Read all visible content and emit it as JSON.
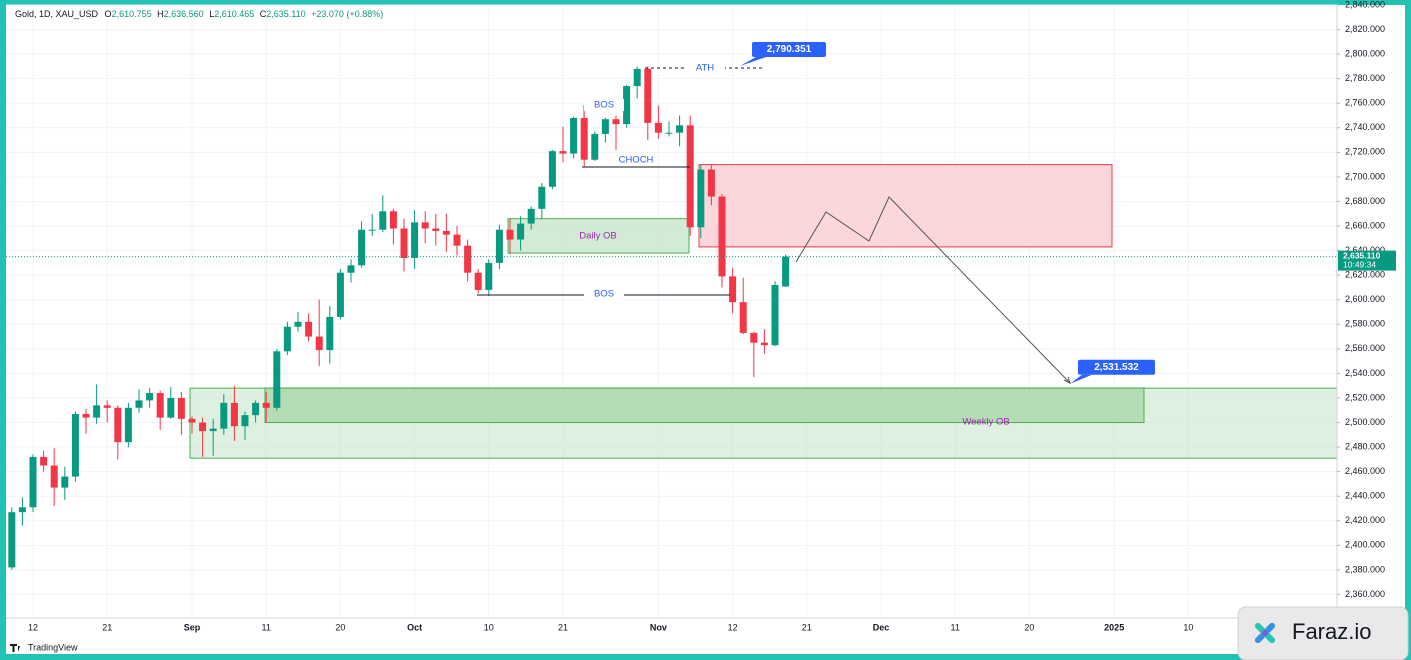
{
  "chart_data": {
    "type": "candlestick",
    "legend_header": {
      "symbol": "Gold, 1D, XAU_USD",
      "ohlc": [
        {
          "key": "O",
          "value": "2,610.755"
        },
        {
          "key": "H",
          "value": "2,636.560"
        },
        {
          "key": "L",
          "value": "2,610.465"
        },
        {
          "key": "C",
          "value": "2,635.110"
        }
      ],
      "change": "+23.070 (+0.88%)"
    },
    "categories": [
      null,
      null,
      "12",
      null,
      null,
      null,
      null,
      null,
      null,
      "21",
      null,
      null,
      null,
      null,
      null,
      null,
      null,
      "Sep",
      null,
      null,
      null,
      null,
      null,
      null,
      "11",
      null,
      null,
      null,
      null,
      null,
      null,
      "20",
      null,
      null,
      null,
      null,
      null,
      null,
      "Oct",
      null,
      null,
      null,
      null,
      null,
      null,
      "10",
      null,
      null,
      null,
      null,
      null,
      null,
      "21",
      null,
      null,
      null,
      null,
      null,
      null,
      null,
      null,
      "Nov",
      null,
      null,
      null,
      null,
      null,
      null,
      "12",
      null,
      null,
      null,
      null,
      null,
      null,
      "21",
      null,
      null,
      null,
      null,
      null,
      null,
      "Dec",
      null,
      null,
      null,
      null,
      null,
      null,
      "11",
      null,
      null,
      null,
      null,
      null,
      null,
      "20",
      null,
      null,
      null,
      null,
      null,
      null,
      null,
      "2025",
      null,
      null,
      null,
      null,
      null,
      null,
      "10",
      null,
      null,
      null,
      null,
      null,
      null,
      null,
      null,
      null,
      null,
      null,
      null,
      null,
      null
    ],
    "open": [
      2382,
      2427,
      2431,
      2472,
      2465,
      2447,
      2456,
      2507,
      2504,
      2514,
      2512,
      2484,
      2512,
      2518,
      2524,
      2504,
      2520,
      2503,
      2500,
      2493,
      2495,
      2516,
      2497,
      2506,
      2516,
      2512,
      2558,
      2578,
      2582,
      2570,
      2559,
      2586,
      2622,
      2628,
      2657,
      2657,
      2672,
      2658,
      2634,
      2663,
      2658,
      2656,
      2653,
      2644,
      2622,
      2608,
      2630,
      2657,
      2649,
      2662,
      2674,
      2692,
      2721,
      2719,
      2748,
      2714,
      2735,
      2747,
      2743,
      2774,
      2788,
      2744,
      2736,
      2736,
      2742,
      2659,
      2706,
      2684,
      2619,
      2598,
      2573,
      2565,
      2563,
      2610.755,
      null,
      null,
      null,
      null,
      null,
      null,
      null,
      null,
      null,
      null,
      null,
      null,
      null,
      null,
      null,
      null,
      null,
      null,
      null,
      null,
      null,
      null,
      null,
      null,
      null,
      null,
      null,
      null,
      null,
      null,
      null,
      null,
      null,
      null,
      null,
      null,
      null,
      null,
      null,
      null,
      null,
      null,
      null,
      null,
      null,
      null,
      null,
      null,
      null,
      null,
      null,
      null
    ],
    "high": [
      2431,
      2439,
      2474,
      2477,
      2479,
      2464,
      2509,
      2511,
      2531,
      2518,
      2514,
      2516,
      2527,
      2528,
      2526,
      2529,
      2525,
      2505,
      2504,
      2503,
      2523,
      2530,
      2509,
      2518,
      2525,
      2560,
      2582,
      2590,
      2589,
      2600,
      2595,
      2625,
      2633,
      2664,
      2670,
      2685,
      2674,
      2666,
      2673,
      2672,
      2670,
      2670,
      2660,
      2649,
      2625,
      2633,
      2661,
      2666,
      2668,
      2676,
      2695,
      2722,
      2741,
      2749,
      2758,
      2737,
      2748,
      2750,
      2775,
      2790,
      2790,
      2758,
      2745,
      2750,
      2750,
      2710,
      2710,
      2686,
      2626,
      2618,
      2574,
      2576,
      2615,
      2636.56,
      null,
      null,
      null,
      null,
      null,
      null,
      null,
      null,
      null,
      null,
      null,
      null,
      null,
      null,
      null,
      null,
      null,
      null,
      null,
      null,
      null,
      null,
      null,
      null,
      null,
      null,
      null,
      null,
      null,
      null,
      null,
      null,
      null,
      null,
      null,
      null,
      null,
      null,
      null,
      null,
      null,
      null,
      null,
      null,
      null,
      null,
      null,
      null,
      null,
      null,
      null,
      null
    ],
    "low": [
      2380,
      2416,
      2427,
      2460,
      2432,
      2437,
      2452,
      2491,
      2499,
      2500,
      2470,
      2480,
      2508,
      2512,
      2494,
      2503,
      2490,
      2491,
      2472,
      2473,
      2490,
      2485,
      2486,
      2500,
      2500,
      2510,
      2555,
      2574,
      2566,
      2546,
      2548,
      2584,
      2614,
      2626,
      2652,
      2655,
      2645,
      2623,
      2625,
      2646,
      2644,
      2639,
      2636,
      2615,
      2605,
      2603,
      2625,
      2637,
      2640,
      2657,
      2666,
      2690,
      2712,
      2715,
      2708,
      2713,
      2728,
      2722,
      2740,
      2764,
      2730,
      2731,
      2733,
      2725,
      2652,
      2650,
      2677,
      2610,
      2589,
      2572,
      2537,
      2556,
      2562,
      2610.465,
      null,
      null,
      null,
      null,
      null,
      null,
      null,
      null,
      null,
      null,
      null,
      null,
      null,
      null,
      null,
      null,
      null,
      null,
      null,
      null,
      null,
      null,
      null,
      null,
      null,
      null,
      null,
      null,
      null,
      null,
      null,
      null,
      null,
      null,
      null,
      null,
      null,
      null,
      null,
      null,
      null,
      null,
      null,
      null,
      null,
      null,
      null,
      null,
      null,
      null,
      null,
      null
    ],
    "close": [
      2427,
      2431,
      2472,
      2465,
      2447,
      2456,
      2507,
      2504,
      2514,
      2512,
      2484,
      2512,
      2518,
      2524,
      2504,
      2520,
      2503,
      2500,
      2493,
      2495,
      2516,
      2497,
      2506,
      2516,
      2512,
      2558,
      2578,
      2582,
      2570,
      2559,
      2586,
      2622,
      2628,
      2657,
      2657,
      2672,
      2658,
      2634,
      2663,
      2658,
      2656,
      2653,
      2644,
      2622,
      2608,
      2630,
      2657,
      2649,
      2662,
      2674,
      2692,
      2721,
      2719,
      2748,
      2714,
      2735,
      2747,
      2743,
      2774,
      2788,
      2744,
      2736,
      2736,
      2742,
      2659,
      2706,
      2684,
      2619,
      2598,
      2573,
      2565,
      2563,
      2612,
      2635.11,
      null,
      null,
      null,
      null,
      null,
      null,
      null,
      null,
      null,
      null,
      null,
      null,
      null,
      null,
      null,
      null,
      null,
      null,
      null,
      null,
      null,
      null,
      null,
      null,
      null,
      null,
      null,
      null,
      null,
      null,
      null,
      null,
      null,
      null,
      null,
      null,
      null,
      null,
      null,
      null,
      null,
      null,
      null,
      null,
      null,
      null,
      null,
      null,
      null,
      null,
      null,
      null
    ],
    "up_color": "#089981",
    "down_color": "#f23645",
    "ylim": [
      2340,
      2840
    ],
    "yticks": [
      {
        "value": 2360,
        "label": "2,360.000"
      },
      {
        "value": 2380,
        "label": "2,380.000"
      },
      {
        "value": 2400,
        "label": "2,400.000"
      },
      {
        "value": 2420,
        "label": "2,420.000"
      },
      {
        "value": 2440,
        "label": "2,440.000"
      },
      {
        "value": 2460,
        "label": "2,460.000"
      },
      {
        "value": 2480,
        "label": "2,480.000"
      },
      {
        "value": 2500,
        "label": "2,500.000"
      },
      {
        "value": 2520,
        "label": "2,520.000"
      },
      {
        "value": 2540,
        "label": "2,540.000"
      },
      {
        "value": 2560,
        "label": "2,560.000"
      },
      {
        "value": 2580,
        "label": "2,580.000"
      },
      {
        "value": 2600,
        "label": "2,600.000"
      },
      {
        "value": 2620,
        "label": "2,620.000"
      },
      {
        "value": 2640,
        "label": "2,640.000"
      },
      {
        "value": 2660,
        "label": "2,660.000"
      },
      {
        "value": 2680,
        "label": "2,680.000"
      },
      {
        "value": 2700,
        "label": "2,700.000"
      },
      {
        "value": 2720,
        "label": "2,720.000"
      },
      {
        "value": 2740,
        "label": "2,740.000"
      },
      {
        "value": 2760,
        "label": "2,760.000"
      },
      {
        "value": 2780,
        "label": "2,780.000"
      },
      {
        "value": 2800,
        "label": "2,800.000"
      },
      {
        "value": 2820,
        "label": "2,820.000"
      },
      {
        "value": 2840,
        "label": "2,840.000"
      }
    ],
    "grid": true,
    "last_price": {
      "value": 2635.11,
      "label": "2,635.110"
    },
    "countdown": "10:49:34",
    "zones": [
      {
        "top": 2528,
        "bottom": 2471,
        "color": "#c8e6c9"
      },
      {
        "top": 2528,
        "bottom": 2500,
        "color": "#a5d6a7"
      },
      {
        "top": 2666,
        "bottom": 2638,
        "color": "#c8e6c9"
      },
      {
        "top": 2710,
        "bottom": 2643,
        "color": "#fbd3d8"
      }
    ],
    "callouts": [
      {
        "value": 2790.351,
        "label": "2,790.351"
      },
      {
        "value": 2531.532,
        "label": "2,531.532"
      }
    ],
    "annotations": [
      {
        "text": "ATH"
      },
      {
        "text": "BOS"
      },
      {
        "text": "CHOCH"
      },
      {
        "text": "BOS"
      },
      {
        "text": "Daily OB"
      },
      {
        "text": "Weekly OB"
      }
    ]
  },
  "branding": {
    "platform": "TradingView",
    "watermark": "Faraz.io"
  }
}
